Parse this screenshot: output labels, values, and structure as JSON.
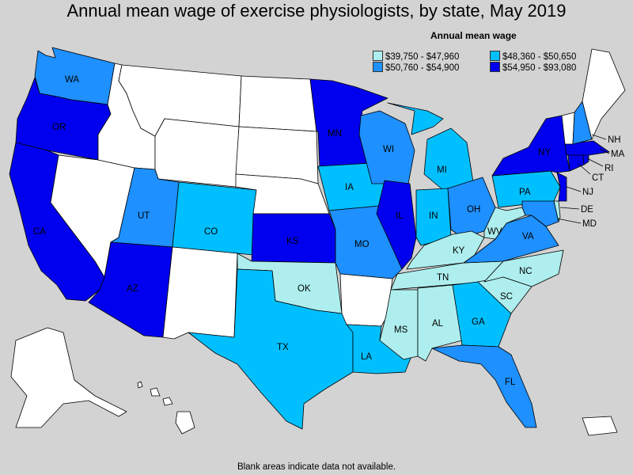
{
  "title": "Annual mean wage of exercise physiologists, by state, May 2019",
  "footnote": "Blank areas indicate data not available.",
  "legend": {
    "title": "Annual mean wage",
    "items": [
      {
        "label": "$39,750 - $47,960",
        "color": "#aeeeee"
      },
      {
        "label": "$48,360 - $50,650",
        "color": "#00bfff"
      },
      {
        "label": "$50,760 - $54,900",
        "color": "#1e90ff"
      },
      {
        "label": "$54,950 - $93,080",
        "color": "#0000ee"
      }
    ]
  },
  "colors": {
    "none": "#ffffff",
    "c1": "#aeeeee",
    "c2": "#00bfff",
    "c3": "#1e90ff",
    "c4": "#0000ee"
  },
  "states": {
    "WA": "c3",
    "OR": "c4",
    "CA": "c4",
    "AZ": "c4",
    "UT": "c3",
    "CO": "c2",
    "KS": "c4",
    "TX": "c2",
    "OK": "c1",
    "MN": "c4",
    "IA": "c2",
    "MO": "c3",
    "WI": "c3",
    "IL": "c4",
    "LA": "c2",
    "MS": "c1",
    "AL": "c1",
    "TN": "c1",
    "KY": "c1",
    "IN": "c2",
    "MI": "c2",
    "OH": "c3",
    "GA": "c2",
    "FL": "c3",
    "SC": "c1",
    "NC": "c1",
    "VA": "c3",
    "WV": "c1",
    "PA": "c2",
    "NY": "c4",
    "NJ": "c4",
    "DE": "c1",
    "MD": "c3",
    "CT": "c4",
    "RI": "c4",
    "MA": "c4",
    "NH": "c3",
    "VT": "none",
    "ME": "none",
    "ID": "none",
    "MT": "none",
    "WY": "none",
    "NV": "none",
    "NM": "none",
    "ND": "none",
    "SD": "none",
    "NE": "none",
    "AR": "none",
    "AK": "none",
    "HI": "none",
    "PR": "none"
  },
  "labels": {
    "WA": "WA",
    "OR": "OR",
    "CA": "CA",
    "AZ": "AZ",
    "UT": "UT",
    "CO": "CO",
    "KS": "KS",
    "TX": "TX",
    "OK": "OK",
    "MN": "MN",
    "IA": "IA",
    "MO": "MO",
    "WI": "WI",
    "IL": "IL",
    "LA": "LA",
    "MS": "MS",
    "AL": "AL",
    "TN": "TN",
    "KY": "KY",
    "IN": "IN",
    "MI": "MI",
    "OH": "OH",
    "GA": "GA",
    "FL": "FL",
    "SC": "SC",
    "NC": "NC",
    "VA": "VA",
    "WV": "WV",
    "PA": "PA",
    "NY": "NY",
    "NJ": "NJ",
    "DE": "DE",
    "MD": "MD",
    "CT": "CT",
    "RI": "RI",
    "MA": "MA",
    "NH": "NH"
  }
}
